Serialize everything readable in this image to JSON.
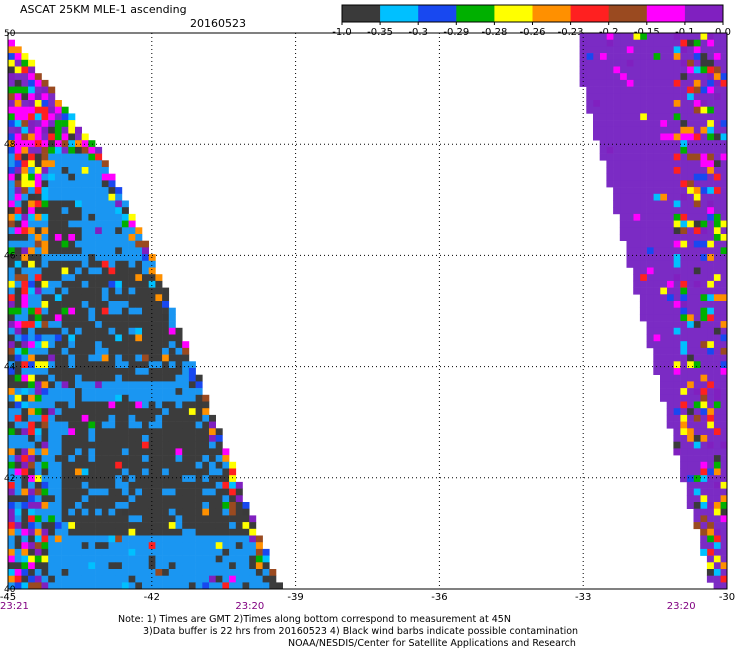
{
  "header": {
    "title": "ASCAT 25KM MLE-1 ascending",
    "date": "20160523"
  },
  "colorbar": {
    "colors": [
      "#3a3a3a",
      "#00c0ff",
      "#1848f0",
      "#00b000",
      "#ffff00",
      "#ff9000",
      "#ff2020",
      "#9a4a20",
      "#ff00ff",
      "#8020c0"
    ],
    "labels": [
      "-1.0",
      "-0.35",
      "-0.3",
      "-0.29",
      "-0.28",
      "-0.26",
      "-0.23",
      "-0.2",
      "-0.15",
      "-0.1",
      "0.0"
    ]
  },
  "map": {
    "lon_range": [
      -45,
      -30
    ],
    "lat_range": [
      40,
      50
    ],
    "lon_labels": [
      "-45",
      "-42",
      "-39",
      "-36",
      "-33",
      "-30"
    ],
    "lat_labels": [
      "50",
      "48",
      "46",
      "44",
      "42",
      "40"
    ],
    "time_labels": [
      {
        "lon": -45,
        "text": "23:21"
      },
      {
        "lon": -42,
        "text": "23:20"
      },
      {
        "lon": -33,
        "text": "23:20"
      }
    ],
    "swath_colors": {
      "gray": "#3c3c3c",
      "blue": "#1a96f2",
      "purple": "#7b2bc4"
    }
  },
  "notes": {
    "line1": "Note: 1) Times are GMT 2)Times along bottom correspond to measurement at 45N",
    "line2": "3)Data buffer is 22 hrs from 20160523 4) Black wind barbs indicate possible contamination",
    "line3": "NOAA/NESDIS/Center for Satellite Applications and Research"
  }
}
